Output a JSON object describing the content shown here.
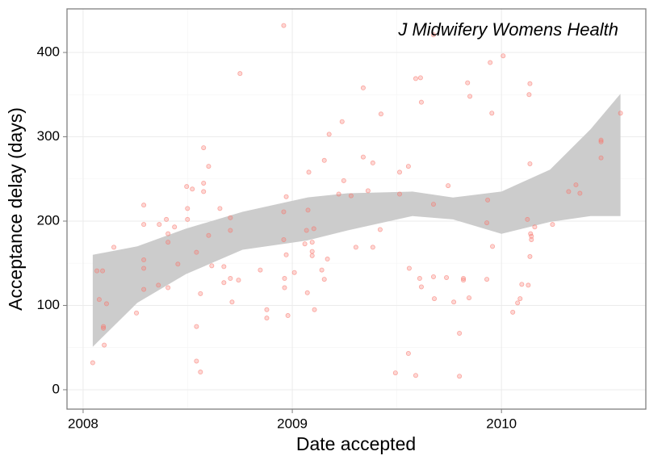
{
  "chart_data": {
    "type": "scatter",
    "annotation": "J Midwifery Womens Health",
    "x_label": "Date accepted",
    "y_label": "Acceptance delay (days)",
    "color": "#f8766d",
    "grid": true,
    "xlim": [
      2007.923,
      2010.69
    ],
    "ylim": [
      -23,
      451.7
    ],
    "xticks": [
      2008,
      2009,
      2010
    ],
    "yticks": [
      0,
      100,
      200,
      300,
      400
    ],
    "x": [
      2008.046,
      2008.066,
      2008.077,
      2008.093,
      2008.097,
      2008.097,
      2008.101,
      2008.112,
      2008.147,
      2008.255,
      2008.29,
      2008.29,
      2008.29,
      2008.29,
      2008.29,
      2008.36,
      2008.364,
      2008.398,
      2008.406,
      2008.406,
      2008.406,
      2008.437,
      2008.453,
      2008.495,
      2008.499,
      2008.499,
      2008.522,
      2008.542,
      2008.542,
      2008.542,
      2008.561,
      2008.561,
      2008.576,
      2008.576,
      2008.576,
      2008.6,
      2008.6,
      2008.615,
      2008.654,
      2008.673,
      2008.673,
      2008.704,
      2008.704,
      2008.704,
      2008.712,
      2008.743,
      2008.75,
      2008.847,
      2008.878,
      2008.878,
      2008.959,
      2008.959,
      2008.959,
      2008.963,
      2008.963,
      2008.971,
      2008.971,
      2008.979,
      2009.01,
      2009.06,
      2009.068,
      2009.072,
      2009.075,
      2009.079,
      2009.095,
      2009.095,
      2009.095,
      2009.103,
      2009.106,
      2009.141,
      2009.153,
      2009.153,
      2009.168,
      2009.176,
      2009.222,
      2009.238,
      2009.246,
      2009.281,
      2009.304,
      2009.339,
      2009.339,
      2009.362,
      2009.385,
      2009.385,
      2009.42,
      2009.424,
      2009.493,
      2009.513,
      2009.513,
      2009.555,
      2009.559,
      2009.555,
      2009.59,
      2009.59,
      2009.609,
      2009.613,
      2009.617,
      2009.617,
      2009.675,
      2009.675,
      2009.675,
      2009.679,
      2009.737,
      2009.745,
      2009.772,
      2009.799,
      2009.799,
      2009.818,
      2009.818,
      2009.838,
      2009.845,
      2009.849,
      2009.93,
      2009.93,
      2009.934,
      2009.946,
      2009.954,
      2009.957,
      2010.008,
      2010.054,
      2010.077,
      2010.089,
      2010.097,
      2010.124,
      2010.128,
      2010.132,
      2010.136,
      2010.136,
      2010.136,
      2010.139,
      2010.143,
      2010.143,
      2010.159,
      2010.244,
      2010.321,
      2010.356,
      2010.375,
      2010.476,
      2010.476,
      2010.476,
      2010.569
    ],
    "values": [
      32,
      141,
      107,
      141,
      75,
      73,
      53,
      102,
      169,
      91,
      219,
      196,
      154,
      144,
      119,
      124,
      196,
      202,
      185,
      175,
      121,
      193,
      149,
      241,
      202,
      215,
      238,
      75,
      163,
      34,
      21,
      114,
      287,
      245,
      235,
      265,
      183,
      147,
      215,
      146,
      127,
      204,
      189,
      132,
      104,
      130,
      375,
      142,
      95,
      85,
      432,
      178,
      211,
      132,
      121,
      229,
      160,
      88,
      139,
      173,
      189,
      115,
      213,
      258,
      175,
      164,
      159,
      191,
      95,
      142,
      131,
      272,
      155,
      303,
      232,
      318,
      248,
      230,
      169,
      358,
      276,
      236,
      269,
      169,
      190,
      327,
      20,
      258,
      232,
      265,
      144,
      43,
      369,
      17,
      132,
      370,
      122,
      341,
      421,
      220,
      134,
      108,
      133,
      242,
      104,
      67,
      16,
      132,
      130,
      364,
      109,
      348,
      131,
      198,
      225,
      388,
      328,
      170,
      396,
      92,
      103,
      108,
      125,
      202,
      124,
      350,
      363,
      268,
      158,
      185,
      182,
      178,
      193,
      196,
      235,
      243,
      233,
      296,
      275,
      294,
      328
    ],
    "band": {
      "color": "#cccccc",
      "x": [
        2008.046,
        2008.259,
        2008.491,
        2008.762,
        2009.072,
        2009.265,
        2009.574,
        2009.768,
        2010.0,
        2010.232,
        2010.426,
        2010.569
      ],
      "upper": [
        160,
        170,
        191,
        211,
        228,
        233,
        235,
        228,
        235,
        261,
        309,
        351
      ],
      "lower": [
        51,
        103,
        137,
        166,
        177,
        189,
        206,
        202,
        185,
        199,
        206,
        206
      ]
    }
  }
}
